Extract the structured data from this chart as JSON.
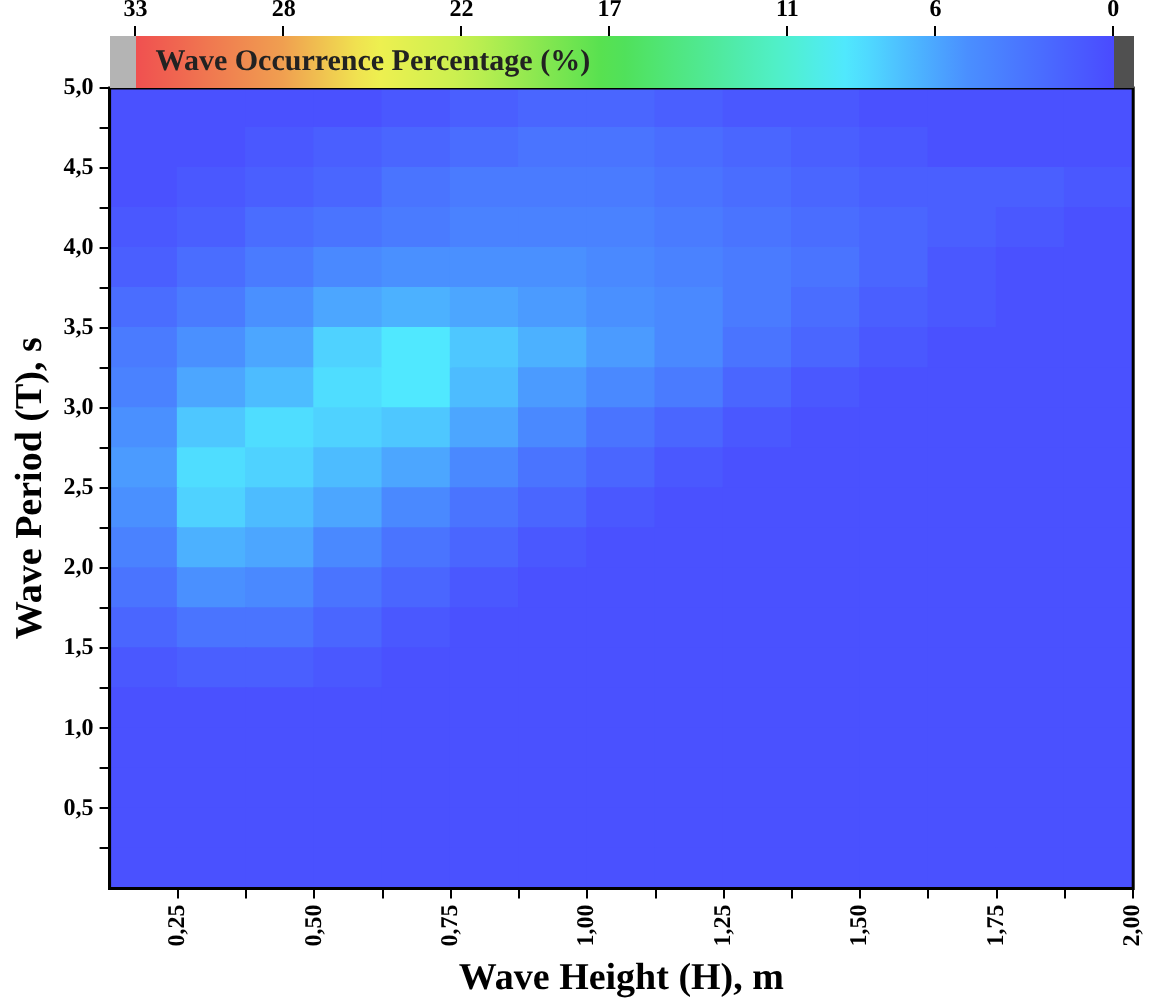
{
  "chart_data": {
    "type": "heatmap",
    "xlabel": "Wave Height (H), m",
    "ylabel": "Wave Period (T), s",
    "clabel": "Wave Occurrence Percentage (%)",
    "x": [
      0.1875,
      0.3125,
      0.4375,
      0.5625,
      0.6875,
      0.8125,
      0.9375,
      1.0625,
      1.1875,
      1.3125,
      1.4375,
      1.5625,
      1.6875,
      1.8125,
      1.9375
    ],
    "y": [
      4.875,
      4.625,
      4.375,
      4.125,
      3.875,
      3.625,
      3.375,
      3.125,
      2.875,
      2.625,
      2.375,
      2.125,
      1.875,
      1.625,
      1.375,
      1.125,
      0.875,
      0.625,
      0.375,
      0.125
    ],
    "cells": [
      [
        0.5,
        0.5,
        0.5,
        0.5,
        1,
        1.5,
        2,
        2,
        1.5,
        1,
        1,
        0.5,
        0.5,
        0.5,
        0.5
      ],
      [
        0.5,
        0.5,
        1,
        1.5,
        2,
        2.5,
        3,
        3,
        2.5,
        2,
        1.5,
        1,
        0.5,
        0.5,
        0.5
      ],
      [
        0.5,
        1,
        1.5,
        2,
        3,
        3.5,
        3.5,
        3.5,
        3,
        2.5,
        2,
        1.5,
        1.5,
        1.5,
        1
      ],
      [
        1,
        1.5,
        2.5,
        3,
        3.5,
        4,
        4,
        4,
        3.5,
        3,
        2.5,
        2,
        1.5,
        1,
        0.5
      ],
      [
        1.5,
        2.5,
        3.5,
        4.5,
        5,
        5,
        5,
        4.5,
        4,
        3.5,
        3,
        2,
        1,
        0.5,
        0.5
      ],
      [
        2.5,
        3.5,
        5,
        6,
        6.5,
        6,
        5.5,
        5,
        4.5,
        3.5,
        2.5,
        1.5,
        1,
        0.5,
        0.5
      ],
      [
        3.5,
        5,
        6,
        8,
        9,
        7.5,
        6.5,
        5.5,
        4.5,
        3,
        2,
        1,
        0.5,
        0.5,
        0.5
      ],
      [
        4,
        6,
        7,
        8.5,
        9,
        7,
        5.5,
        4.5,
        3.5,
        2,
        1,
        0.5,
        0.5,
        0.5,
        0.5
      ],
      [
        5,
        7.5,
        8.5,
        8,
        7.5,
        6,
        4.5,
        3,
        2,
        1,
        0.5,
        0.5,
        0.5,
        0.5,
        0.5
      ],
      [
        5.5,
        8.5,
        8,
        7,
        6,
        4.5,
        3,
        2,
        1,
        0.5,
        0.5,
        0.5,
        0.5,
        0.5,
        0.5
      ],
      [
        5,
        8,
        7,
        6,
        4.5,
        3,
        2,
        1,
        0.5,
        0.5,
        0.5,
        0.5,
        0.5,
        0.5,
        0.5
      ],
      [
        4,
        6.5,
        6,
        4.5,
        3,
        2,
        1,
        0.5,
        0.5,
        0.5,
        0.5,
        0.5,
        0.5,
        0.5,
        0.5
      ],
      [
        3,
        5,
        4.5,
        3,
        2,
        1,
        0.5,
        0.5,
        0.5,
        0.5,
        0.5,
        0.5,
        0.5,
        0.5,
        0.5
      ],
      [
        2,
        3,
        3,
        2,
        1,
        0.5,
        0.5,
        0.5,
        0.5,
        0.5,
        0.5,
        0.5,
        0.5,
        0.5,
        0.5
      ],
      [
        1,
        1.5,
        1.5,
        1,
        0.5,
        0.5,
        0.5,
        0.5,
        0.5,
        0.5,
        0.5,
        0.5,
        0.5,
        0.5,
        0.5
      ],
      [
        0.5,
        0.5,
        0.5,
        0.5,
        0.5,
        0.5,
        0.5,
        0.5,
        0.5,
        0.5,
        0.5,
        0.5,
        0.5,
        0.5,
        0.5
      ],
      [
        0.5,
        0.5,
        0.5,
        0.5,
        0.5,
        0.5,
        0.5,
        0.5,
        0.5,
        0.5,
        0.5,
        0.5,
        0.5,
        0.5,
        0.5
      ],
      [
        0.5,
        0.5,
        0.5,
        0.5,
        0.5,
        0.5,
        0.5,
        0.5,
        0.5,
        0.5,
        0.5,
        0.5,
        0.5,
        0.5,
        0.5
      ],
      [
        0.5,
        0.5,
        0.5,
        0.5,
        0.5,
        0.5,
        0.5,
        0.5,
        0.5,
        0.5,
        0.5,
        0.5,
        0.5,
        0.5,
        0.5
      ],
      [
        0.5,
        0.5,
        0.5,
        0.5,
        0.5,
        0.5,
        0.5,
        0.5,
        0.5,
        0.5,
        0.5,
        0.5,
        0.5,
        0.5,
        0.5
      ]
    ],
    "clim": [
      33,
      0
    ],
    "cticks": [
      33,
      28,
      22,
      17,
      11,
      6,
      0
    ],
    "xlim": [
      0.125,
      2.0
    ],
    "xticks": [
      {
        "value": 0.25,
        "label": "0,25"
      },
      {
        "value": 0.375,
        "label": null
      },
      {
        "value": 0.5,
        "label": "0,50"
      },
      {
        "value": 0.625,
        "label": null
      },
      {
        "value": 0.75,
        "label": "0,75"
      },
      {
        "value": 0.875,
        "label": null
      },
      {
        "value": 1.0,
        "label": "1,00"
      },
      {
        "value": 1.125,
        "label": null
      },
      {
        "value": 1.25,
        "label": "1,25"
      },
      {
        "value": 1.375,
        "label": null
      },
      {
        "value": 1.5,
        "label": "1,50"
      },
      {
        "value": 1.625,
        "label": null
      },
      {
        "value": 1.75,
        "label": "1,75"
      },
      {
        "value": 1.875,
        "label": null
      },
      {
        "value": 2.0,
        "label": "2,00"
      }
    ],
    "ylim": [
      0,
      5.0
    ],
    "yticks": [
      {
        "value": 0.25,
        "label": null
      },
      {
        "value": 0.5,
        "label": "0,5"
      },
      {
        "value": 0.75,
        "label": null
      },
      {
        "value": 1.0,
        "label": "1,0"
      },
      {
        "value": 1.25,
        "label": null
      },
      {
        "value": 1.5,
        "label": "1,5"
      },
      {
        "value": 1.75,
        "label": null
      },
      {
        "value": 2.0,
        "label": "2,0"
      },
      {
        "value": 2.25,
        "label": null
      },
      {
        "value": 2.5,
        "label": "2,5"
      },
      {
        "value": 2.75,
        "label": null
      },
      {
        "value": 3.0,
        "label": "3,0"
      },
      {
        "value": 3.25,
        "label": null
      },
      {
        "value": 3.5,
        "label": "3,5"
      },
      {
        "value": 3.75,
        "label": null
      },
      {
        "value": 4.0,
        "label": "4,0"
      },
      {
        "value": 4.25,
        "label": null
      },
      {
        "value": 4.5,
        "label": "4,5"
      },
      {
        "value": 4.75,
        "label": null
      },
      {
        "value": 5.0,
        "label": "5,0"
      }
    ]
  }
}
